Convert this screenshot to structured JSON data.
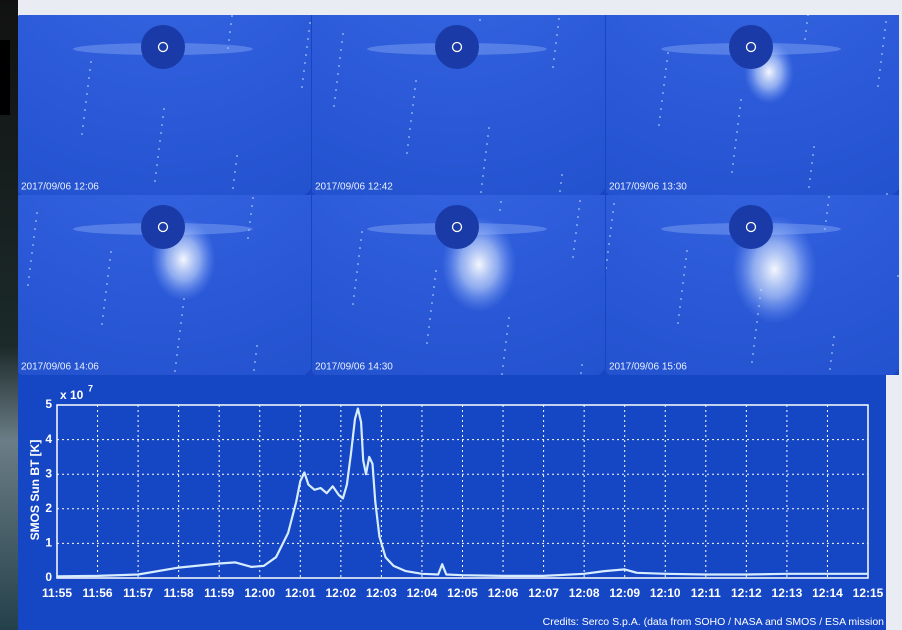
{
  "panels": [
    {
      "timestamp": "2017/09/06 12:06"
    },
    {
      "timestamp": "2017/09/06 12:42"
    },
    {
      "timestamp": "2017/09/06 13:30"
    },
    {
      "timestamp": "2017/09/06 14:06"
    },
    {
      "timestamp": "2017/09/06 14:30"
    },
    {
      "timestamp": "2017/09/06 15:06"
    }
  ],
  "credits": "Credits: Serco S.p.A. (data from SOHO / NASA and SMOS / ESA mission",
  "chart_data": {
    "type": "line",
    "y_label": "SMOS Sun BT [K]",
    "y_multiplier": "x 10",
    "y_exponent": "7",
    "x": [
      715,
      716,
      717,
      718,
      719,
      719.4,
      719.8,
      720.1,
      720.4,
      720.7,
      720.9,
      721.0,
      721.1,
      721.2,
      721.35,
      721.5,
      721.65,
      721.8,
      721.95,
      722.05,
      722.15,
      722.25,
      722.35,
      722.42,
      722.5,
      722.55,
      722.62,
      722.7,
      722.78,
      722.85,
      722.95,
      723.1,
      723.3,
      723.6,
      724.0,
      724.4,
      724.5,
      724.6,
      725,
      726,
      727,
      728,
      728.5,
      729,
      729.3,
      730,
      731,
      732,
      733,
      734,
      735
    ],
    "series": [
      {
        "color": "#d6ecff",
        "values": [
          0.05,
          0.06,
          0.1,
          0.3,
          0.42,
          0.45,
          0.32,
          0.35,
          0.6,
          1.3,
          2.2,
          2.8,
          3.05,
          2.7,
          2.55,
          2.6,
          2.45,
          2.65,
          2.4,
          2.3,
          2.7,
          3.6,
          4.6,
          4.9,
          4.5,
          3.4,
          3.0,
          3.5,
          3.3,
          2.2,
          1.2,
          0.6,
          0.35,
          0.2,
          0.12,
          0.1,
          0.4,
          0.1,
          0.08,
          0.06,
          0.06,
          0.12,
          0.2,
          0.25,
          0.15,
          0.12,
          0.1,
          0.1,
          0.12,
          0.12,
          0.12
        ]
      }
    ],
    "xlim": [
      715,
      735
    ],
    "xticks": [
      {
        "value": 715,
        "label": "11:55"
      },
      {
        "value": 716,
        "label": "11:56"
      },
      {
        "value": 717,
        "label": "11:57"
      },
      {
        "value": 718,
        "label": "11:58"
      },
      {
        "value": 719,
        "label": "11:59"
      },
      {
        "value": 720,
        "label": "12:00"
      },
      {
        "value": 721,
        "label": "12:01"
      },
      {
        "value": 722,
        "label": "12:02"
      },
      {
        "value": 723,
        "label": "12:03"
      },
      {
        "value": 724,
        "label": "12:04"
      },
      {
        "value": 725,
        "label": "12:05"
      },
      {
        "value": 726,
        "label": "12:06"
      },
      {
        "value": 727,
        "label": "12:07"
      },
      {
        "value": 728,
        "label": "12:08"
      },
      {
        "value": 729,
        "label": "12:09"
      },
      {
        "value": 730,
        "label": "12:10"
      },
      {
        "value": 731,
        "label": "12:11"
      },
      {
        "value": 732,
        "label": "12:12"
      },
      {
        "value": 733,
        "label": "12:13"
      },
      {
        "value": 734,
        "label": "12:14"
      },
      {
        "value": 735,
        "label": "12:15"
      }
    ],
    "ylim": [
      0,
      5
    ],
    "yticks": [
      0,
      1,
      2,
      3,
      4,
      5
    ],
    "grid": true
  }
}
